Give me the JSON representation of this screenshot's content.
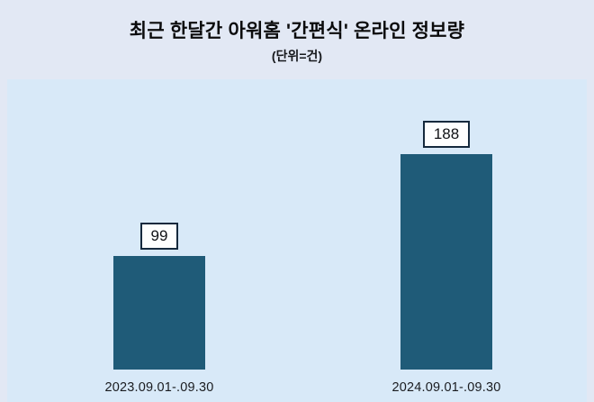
{
  "chart_data": {
    "type": "bar",
    "title": "최근 한달간 아워홈 '간편식' 온라인 정보량",
    "subtitle": "(단위=건)",
    "categories": [
      "2023.09.01-.09.30",
      "2024.09.01-.09.30"
    ],
    "values": [
      99,
      188
    ],
    "ylim": [
      0,
      220
    ],
    "xlabel": "",
    "ylabel": "",
    "grid": false,
    "legend": false,
    "bar_color": "#1f5b78",
    "background_color": "#e2e8f4",
    "plot_background_color": "#d8e9f8",
    "value_label_border_color": "#14293d"
  }
}
